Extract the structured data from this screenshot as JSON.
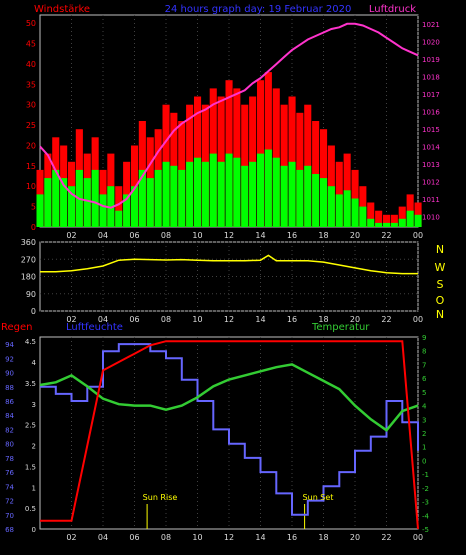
{
  "colors": {
    "background": "#000000",
    "frame": "#c0c0c0",
    "grid": "#404040",
    "tick_text": "#dcdcdc",
    "wind_gust": "#ff0000",
    "wind_avg": "#00ff00",
    "pressure": "#ff33cc",
    "direction": "#ffff00",
    "rain": "#ff0000",
    "humidity": "#6666ff",
    "temperature": "#33cc33",
    "label_red": "#ff0000",
    "label_blue": "#3333ff",
    "label_magenta": "#ff33cc",
    "label_yellow": "#ffff00",
    "label_green": "#33cc33"
  },
  "header": {
    "left_label": "Windstärke",
    "center_title": "24 hours graph day: 19 Februar 2020",
    "right_label": "Luftdruck"
  },
  "x_ticks": [
    "02",
    "04",
    "06",
    "08",
    "10",
    "12",
    "14",
    "16",
    "18",
    "20",
    "22",
    "00"
  ],
  "compass_labels": [
    "N",
    "W",
    "S",
    "O",
    "N"
  ],
  "bottom_labels": {
    "rain": "Regen",
    "humidity": "Luftfeuchte",
    "temperature": "Temperatur",
    "sunrise": "Sun Rise",
    "sunset": "Sun Set"
  },
  "chart_data": [
    {
      "type": "area",
      "panel": "wind_pressure",
      "x_hours": [
        0,
        0.5,
        1,
        1.5,
        2,
        2.5,
        3,
        3.5,
        4,
        4.5,
        5,
        5.5,
        6,
        6.5,
        7,
        7.5,
        8,
        8.5,
        9,
        9.5,
        10,
        10.5,
        11,
        11.5,
        12,
        12.5,
        13,
        13.5,
        14,
        14.5,
        15,
        15.5,
        16,
        16.5,
        17,
        17.5,
        18,
        18.5,
        19,
        19.5,
        20,
        20.5,
        21,
        21.5,
        22,
        22.5,
        23,
        23.5,
        24
      ],
      "x_tick_labels": [
        "02",
        "04",
        "06",
        "08",
        "10",
        "12",
        "14",
        "16",
        "18",
        "20",
        "22",
        "00"
      ],
      "y_left": {
        "label": "Windstärke",
        "ticks": [
          0,
          5,
          10,
          15,
          20,
          25,
          30,
          35,
          40,
          45,
          50
        ],
        "range": [
          0,
          52
        ]
      },
      "y_right": {
        "label": "Luftdruck",
        "ticks": [
          1010,
          1011,
          1012,
          1013,
          1014,
          1015,
          1016,
          1017,
          1018,
          1019,
          1020,
          1021
        ],
        "range": [
          1009.4,
          1021.5
        ]
      },
      "series": [
        {
          "name": "Windstärke",
          "values": [
            14,
            18,
            22,
            20,
            16,
            24,
            18,
            22,
            14,
            18,
            10,
            16,
            20,
            26,
            22,
            24,
            30,
            28,
            26,
            30,
            32,
            30,
            34,
            32,
            36,
            34,
            30,
            32,
            36,
            38,
            34,
            30,
            32,
            28,
            30,
            26,
            24,
            20,
            16,
            18,
            14,
            10,
            6,
            4,
            3,
            3,
            5,
            8,
            6
          ]
        },
        {
          "values": [
            8,
            12,
            14,
            12,
            10,
            14,
            12,
            14,
            8,
            10,
            4,
            8,
            10,
            14,
            12,
            14,
            16,
            15,
            14,
            16,
            17,
            16,
            18,
            16,
            18,
            17,
            15,
            16,
            18,
            19,
            17,
            15,
            16,
            14,
            15,
            13,
            12,
            10,
            8,
            9,
            7,
            5,
            2,
            1,
            1,
            1,
            2,
            4,
            3
          ]
        },
        {
          "name": "Luftdruck",
          "values": [
            1014.0,
            1013.5,
            1012.6,
            1011.8,
            1011.3,
            1011.0,
            1010.9,
            1010.8,
            1010.6,
            1010.5,
            1010.7,
            1011.0,
            1011.6,
            1012.3,
            1013.0,
            1013.7,
            1014.3,
            1014.9,
            1015.3,
            1015.6,
            1015.9,
            1016.1,
            1016.4,
            1016.6,
            1016.8,
            1017.0,
            1017.2,
            1017.6,
            1017.9,
            1018.3,
            1018.7,
            1019.1,
            1019.5,
            1019.8,
            1020.1,
            1020.3,
            1020.5,
            1020.7,
            1020.8,
            1021.0,
            1021.0,
            1020.9,
            1020.7,
            1020.5,
            1020.2,
            1019.9,
            1019.6,
            1019.4,
            1019.2
          ]
        }
      ]
    },
    {
      "type": "line",
      "panel": "wind_direction",
      "x_hours": [
        0,
        1,
        2,
        3,
        4,
        5,
        6,
        7,
        8,
        9,
        10,
        11,
        12,
        13,
        14,
        14.5,
        15,
        16,
        17,
        18,
        19,
        20,
        21,
        22,
        23,
        24
      ],
      "y": {
        "ticks": [
          0,
          90,
          180,
          270,
          360
        ],
        "range": [
          0,
          360
        ]
      },
      "series": [
        {
          "values": [
            205,
            205,
            210,
            220,
            235,
            265,
            270,
            268,
            266,
            268,
            265,
            262,
            262,
            262,
            265,
            290,
            262,
            262,
            262,
            255,
            240,
            225,
            210,
            200,
            195,
            195
          ]
        }
      ]
    },
    {
      "type": "line",
      "panel": "rain_humidity_temperature",
      "x_hours": [
        0,
        1,
        2,
        3,
        4,
        5,
        6,
        7,
        8,
        9,
        10,
        11,
        12,
        13,
        14,
        15,
        16,
        17,
        18,
        19,
        20,
        21,
        22,
        23,
        24
      ],
      "y_left_rain": {
        "label": "Regen",
        "ticks": [
          0,
          0.5,
          1,
          1.5,
          2,
          2.5,
          3,
          3.5,
          4,
          4.5
        ],
        "range": [
          0,
          4.6
        ]
      },
      "y_left_humidity": {
        "label": "Luftfeuchte",
        "ticks": [
          68,
          70,
          72,
          74,
          76,
          78,
          80,
          82,
          84,
          86,
          88,
          90,
          92,
          94
        ],
        "range": [
          68,
          95
        ]
      },
      "y_right_temperature": {
        "label": "Temperatur",
        "ticks": [
          -5,
          -4,
          -3,
          -2,
          -1,
          0,
          1,
          2,
          3,
          4,
          5,
          6,
          7,
          8,
          9
        ],
        "range": [
          -5,
          9
        ]
      },
      "series": [
        {
          "name": "Regen",
          "values": [
            0.2,
            0.2,
            0.2,
            2.0,
            3.8,
            4.0,
            4.2,
            4.4,
            4.5,
            4.5,
            4.5,
            4.5,
            4.5,
            4.5,
            4.5,
            4.5,
            4.5,
            4.5,
            4.5,
            4.5,
            4.5,
            4.5,
            4.5,
            4.5,
            0.0
          ]
        },
        {
          "name": "Luftfeuchte",
          "values": [
            88,
            87,
            86,
            88,
            93,
            94,
            94,
            93,
            92,
            89,
            86,
            82,
            80,
            78,
            76,
            73,
            70,
            72,
            74,
            76,
            79,
            81,
            86,
            83,
            79
          ]
        },
        {
          "name": "Temperatur",
          "values": [
            5.5,
            5.7,
            6.2,
            5.4,
            4.5,
            4.1,
            4.0,
            4.0,
            3.7,
            4.0,
            4.6,
            5.4,
            5.9,
            6.2,
            6.5,
            6.8,
            7.0,
            6.4,
            5.8,
            5.2,
            4.0,
            3.0,
            2.2,
            3.6,
            4.0
          ]
        }
      ],
      "annotations": [
        "Sun Rise",
        "Sun Set"
      ]
    }
  ]
}
